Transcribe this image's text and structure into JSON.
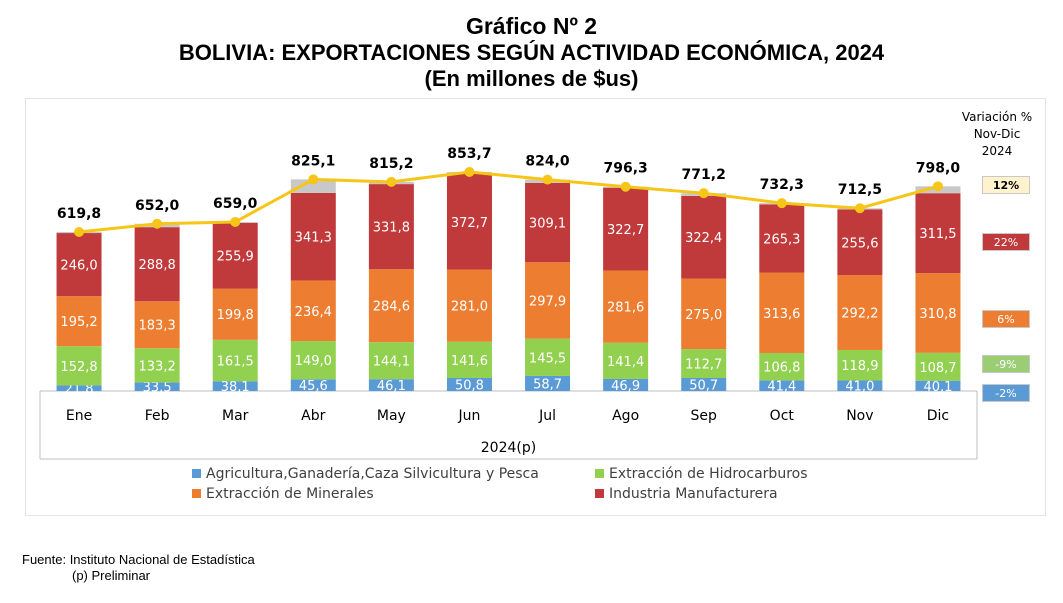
{
  "title": {
    "line1": "Gráfico Nº 2",
    "line2": "BOLIVIA: EXPORTACIONES SEGÚN ACTIVIDAD ECONÓMICA, 2024",
    "line3": "(En millones de $us)"
  },
  "variation": {
    "title_lines": [
      "Variación %",
      "Nov-Dic",
      "2024"
    ],
    "items": [
      {
        "label": "12%",
        "color": "#FFF2CC",
        "text_color": "#000000",
        "bold": true
      },
      {
        "label": "22%",
        "color": "#C0393B",
        "text_color": "#FFFFFF",
        "bold": false
      },
      {
        "label": "6%",
        "color": "#ED7D31",
        "text_color": "#FFFFFF",
        "bold": false
      },
      {
        "label": "-9%",
        "color": "#9ACD74",
        "text_color": "#FFFFFF",
        "bold": false
      },
      {
        "label": "-2%",
        "color": "#5B9BD5",
        "text_color": "#FFFFFF",
        "bold": false
      }
    ]
  },
  "footer": {
    "source": "Fuente: Instituto Nacional de Estadística",
    "note": "(p) Preliminar"
  },
  "chart_data": {
    "type": "bar",
    "stacked": true,
    "categories": [
      "Ene",
      "Feb",
      "Mar",
      "Abr",
      "May",
      "Jun",
      "Jul",
      "Ago",
      "Sep",
      "Oct",
      "Nov",
      "Dic"
    ],
    "xlabel": "2024(p)",
    "ylim": [
      0,
      900
    ],
    "series": [
      {
        "name": "Agricultura,Ganadería,Caza Silvicultura y Pesca",
        "color": "#5B9BD5",
        "values": [
          21.8,
          33.5,
          38.1,
          45.6,
          46.1,
          50.8,
          58.7,
          46.9,
          50.7,
          41.4,
          41.0,
          40.1
        ],
        "labels": [
          "21,8",
          "33,5",
          "38,1",
          "45,6",
          "46,1",
          "50,8",
          "58,7",
          "46,9",
          "50,7",
          "41,4",
          "41,0",
          "40,1"
        ]
      },
      {
        "name": "Extracción de Hidrocarburos",
        "color": "#92D050",
        "values": [
          152.8,
          133.2,
          161.5,
          149.0,
          144.1,
          141.6,
          145.5,
          141.4,
          112.7,
          106.8,
          118.9,
          108.7
        ],
        "labels": [
          "152,8",
          "133,2",
          "161,5",
          "149,0",
          "144,1",
          "141,6",
          "145,5",
          "141,4",
          "112,7",
          "106,8",
          "118,9",
          "108,7"
        ]
      },
      {
        "name": "Extracción de Minerales",
        "color": "#ED7D31",
        "values": [
          195.2,
          183.3,
          199.8,
          236.4,
          284.6,
          281.0,
          297.9,
          281.6,
          275.0,
          313.6,
          292.2,
          310.8
        ],
        "labels": [
          "195,2",
          "183,3",
          "199,8",
          "236,4",
          "284,6",
          "281,0",
          "297,9",
          "281,6",
          "275,0",
          "313,6",
          "292,2",
          "310,8"
        ]
      },
      {
        "name": "Industria Manufacturera",
        "color": "#C0393B",
        "values": [
          246.0,
          288.8,
          255.9,
          341.3,
          331.8,
          372.7,
          309.1,
          322.7,
          322.4,
          265.3,
          255.6,
          311.5
        ],
        "labels": [
          "246,0",
          "288,8",
          "255,9",
          "341,3",
          "331,8",
          "372,7",
          "309,1",
          "322,7",
          "322,4",
          "265,3",
          "255,6",
          "311,5"
        ]
      }
    ],
    "total": {
      "color": "#F5C518",
      "values": [
        619.8,
        652.0,
        659.0,
        825.1,
        815.2,
        853.7,
        824.0,
        796.3,
        771.2,
        732.3,
        712.5,
        798.0
      ],
      "labels": [
        "619,8",
        "652,0",
        "659,0",
        "825,1",
        "815,2",
        "853,7",
        "824,0",
        "796,3",
        "771,2",
        "732,3",
        "712,5",
        "798,0"
      ]
    },
    "other_color": "#C8C8C8",
    "legend_position": "bottom",
    "grid": false
  }
}
